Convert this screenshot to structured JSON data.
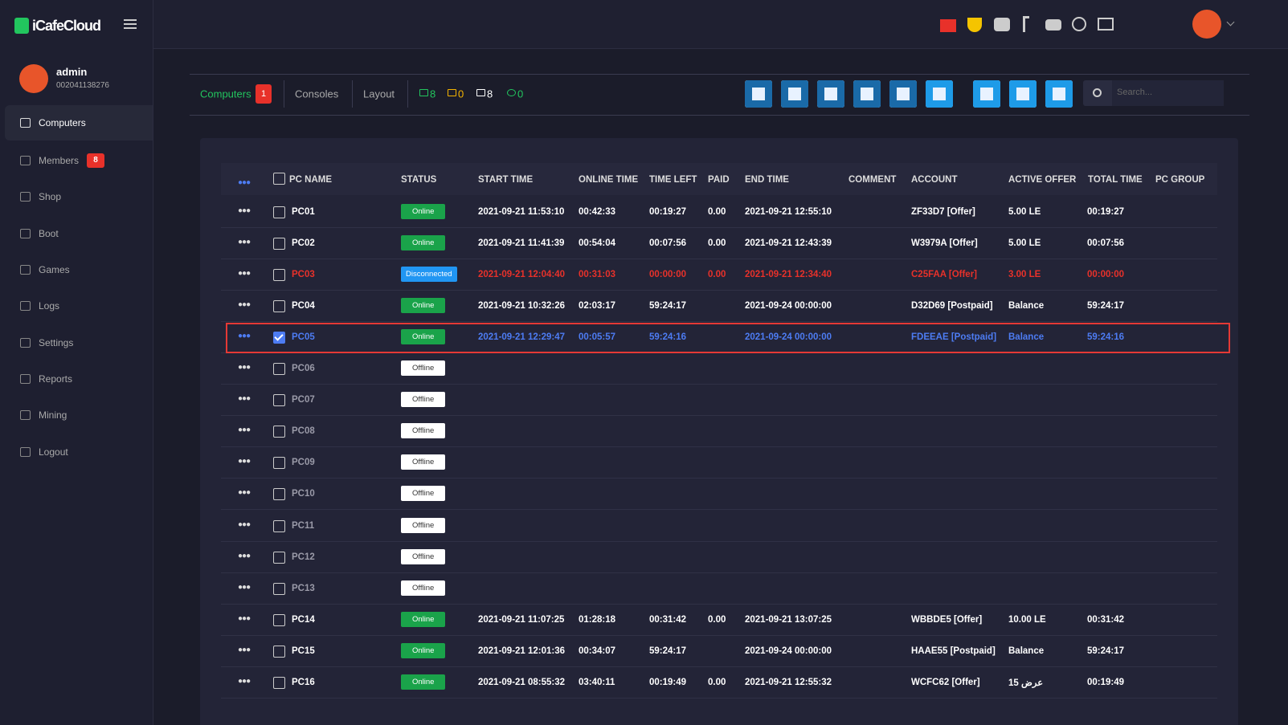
{
  "header": {
    "logo": "iCafeCloud"
  },
  "sidebar": {
    "user": "admin",
    "user_id": "002041138276",
    "menu": [
      {
        "label": "Computers",
        "active": true
      },
      {
        "label": "Members",
        "badge": "8"
      },
      {
        "label": "Shop"
      },
      {
        "label": "Boot"
      },
      {
        "label": "Games"
      },
      {
        "label": "Logs"
      },
      {
        "label": "Settings"
      },
      {
        "label": "Reports"
      },
      {
        "label": "Mining"
      },
      {
        "label": "Logout"
      }
    ]
  },
  "toolbar": {
    "tabs": [
      {
        "label": "Computers",
        "badge": "1",
        "active": true
      },
      {
        "label": "Consoles"
      },
      {
        "label": "Layout"
      }
    ],
    "counts": [
      {
        "value": "8",
        "color": "#22c55e"
      },
      {
        "value": "0",
        "color": "#f5b400"
      },
      {
        "value": "8",
        "color": "#ffffff"
      },
      {
        "value": "0",
        "color": "#22c55e"
      }
    ],
    "search_placeholder": "Search..."
  },
  "table": {
    "headers": [
      "PC NAME",
      "STATUS",
      "START TIME",
      "ONLINE TIME",
      "TIME LEFT",
      "PAID",
      "END TIME",
      "COMMENT",
      "ACCOUNT",
      "ACTIVE OFFER",
      "TOTAL TIME",
      "PC GROUP"
    ],
    "rows": [
      {
        "name": "PC01",
        "status": "Online",
        "start": "2021-09-21 11:53:10",
        "online": "00:42:33",
        "left": "00:19:27",
        "paid": "0.00",
        "end": "2021-09-21 12:55:10",
        "account": "ZF33D7 [Offer]",
        "offer": "5.00 LE",
        "total": "00:19:27",
        "color": "#ffffff",
        "badge_color": "#1aa34a",
        "badge_text_color": "#ffffff"
      },
      {
        "name": "PC02",
        "status": "Online",
        "start": "2021-09-21 11:41:39",
        "online": "00:54:04",
        "left": "00:07:56",
        "paid": "0.00",
        "end": "2021-09-21 12:43:39",
        "account": "W3979A [Offer]",
        "offer": "5.00 LE",
        "total": "00:07:56",
        "color": "#ffffff",
        "badge_color": "#1aa34a",
        "badge_text_color": "#ffffff"
      },
      {
        "name": "PC03",
        "status": "Disconnected",
        "start": "2021-09-21 12:04:40",
        "online": "00:31:03",
        "left": "00:00:00",
        "paid": "0.00",
        "end": "2021-09-21 12:34:40",
        "account": "C25FAA [Offer]",
        "offer": "3.00 LE",
        "total": "00:00:00",
        "color": "#e8312a",
        "badge_color": "#2196f3",
        "badge_text_color": "#ffffff"
      },
      {
        "name": "PC04",
        "status": "Online",
        "start": "2021-09-21 10:32:26",
        "online": "02:03:17",
        "left": "59:24:17",
        "end": "2021-09-24 00:00:00",
        "account": "D32D69 [Postpaid]",
        "offer": "Balance",
        "total": "59:24:17",
        "color": "#ffffff",
        "badge_color": "#1aa34a",
        "badge_text_color": "#ffffff"
      },
      {
        "name": "PC05",
        "status": "Online",
        "start": "2021-09-21 12:29:47",
        "online": "00:05:57",
        "left": "59:24:16",
        "end": "2021-09-24 00:00:00",
        "account": "FDEEAE [Postpaid]",
        "offer": "Balance",
        "total": "59:24:16",
        "color": "#4d7cf3",
        "badge_color": "#1aa34a",
        "badge_text_color": "#ffffff",
        "checked": true,
        "outline": "#e53935"
      },
      {
        "name": "PC06",
        "status": "Offline",
        "color": "#9a9aa8",
        "badge_color": "#ffffff",
        "badge_text_color": "#333333"
      },
      {
        "name": "PC07",
        "status": "Offline",
        "color": "#9a9aa8",
        "badge_color": "#ffffff",
        "badge_text_color": "#333333"
      },
      {
        "name": "PC08",
        "status": "Offline",
        "color": "#9a9aa8",
        "badge_color": "#ffffff",
        "badge_text_color": "#333333"
      },
      {
        "name": "PC09",
        "status": "Offline",
        "color": "#9a9aa8",
        "badge_color": "#ffffff",
        "badge_text_color": "#333333"
      },
      {
        "name": "PC10",
        "status": "Offline",
        "color": "#9a9aa8",
        "badge_color": "#ffffff",
        "badge_text_color": "#333333"
      },
      {
        "name": "PC11",
        "status": "Offline",
        "color": "#9a9aa8",
        "badge_color": "#ffffff",
        "badge_text_color": "#333333"
      },
      {
        "name": "PC12",
        "status": "Offline",
        "color": "#9a9aa8",
        "badge_color": "#ffffff",
        "badge_text_color": "#333333"
      },
      {
        "name": "PC13",
        "status": "Offline",
        "color": "#9a9aa8",
        "badge_color": "#ffffff",
        "badge_text_color": "#333333"
      },
      {
        "name": "PC14",
        "status": "Online",
        "start": "2021-09-21 11:07:25",
        "online": "01:28:18",
        "left": "00:31:42",
        "paid": "0.00",
        "end": "2021-09-21 13:07:25",
        "account": "WBBDE5 [Offer]",
        "offer": "10.00 LE",
        "total": "00:31:42",
        "color": "#ffffff",
        "badge_color": "#1aa34a",
        "badge_text_color": "#ffffff"
      },
      {
        "name": "PC15",
        "status": "Online",
        "start": "2021-09-21 12:01:36",
        "online": "00:34:07",
        "left": "59:24:17",
        "end": "2021-09-24 00:00:00",
        "account": "HAAE55 [Postpaid]",
        "offer": "Balance",
        "total": "59:24:17",
        "color": "#ffffff",
        "badge_color": "#1aa34a",
        "badge_text_color": "#ffffff"
      },
      {
        "name": "PC16",
        "status": "Online",
        "start": "2021-09-21 08:55:32",
        "online": "03:40:11",
        "left": "00:19:49",
        "paid": "0.00",
        "end": "2021-09-21 12:55:32",
        "account": "WCFC62 [Offer]",
        "offer": "15 عرض",
        "total": "00:19:49",
        "color": "#ffffff",
        "badge_color": "#1aa34a",
        "badge_text_color": "#ffffff"
      }
    ]
  }
}
